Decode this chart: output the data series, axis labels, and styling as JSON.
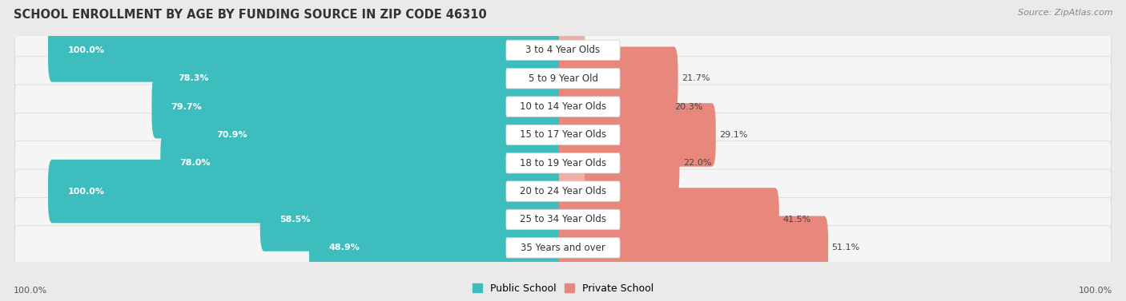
{
  "title": "SCHOOL ENROLLMENT BY AGE BY FUNDING SOURCE IN ZIP CODE 46310",
  "source": "Source: ZipAtlas.com",
  "categories": [
    "3 to 4 Year Olds",
    "5 to 9 Year Old",
    "10 to 14 Year Olds",
    "15 to 17 Year Olds",
    "18 to 19 Year Olds",
    "20 to 24 Year Olds",
    "25 to 34 Year Olds",
    "35 Years and over"
  ],
  "public_values": [
    100.0,
    78.3,
    79.7,
    70.9,
    78.0,
    100.0,
    58.5,
    48.9
  ],
  "private_values": [
    0.0,
    21.7,
    20.3,
    29.1,
    22.0,
    0.0,
    41.5,
    51.1
  ],
  "public_color": "#3DBDBD",
  "private_color": "#E8877C",
  "private_color_light": "#F0AFA9",
  "bg_color": "#EAEAEA",
  "row_bg_color": "#F5F5F5",
  "axis_label_left": "100.0%",
  "axis_label_right": "100.0%",
  "legend_public": "Public School",
  "legend_private": "Private School",
  "title_fontsize": 10.5,
  "source_fontsize": 8,
  "bar_label_fontsize": 8,
  "cat_label_fontsize": 8.5
}
